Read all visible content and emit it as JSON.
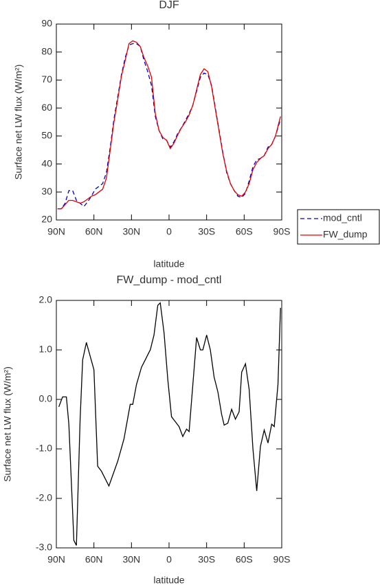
{
  "chart_data": [
    {
      "type": "line",
      "title": "DJF",
      "xlabel": "latitude",
      "ylabel": "Surface net LW flux (W/m²)",
      "x": [
        89,
        86,
        83,
        80,
        77,
        74,
        71,
        68,
        65,
        62,
        59,
        56,
        53,
        50,
        47,
        44,
        41,
        38,
        35,
        32,
        29,
        26,
        23,
        20,
        17,
        14,
        11,
        8,
        5,
        2,
        -1,
        -4,
        -7,
        -10,
        -13,
        -16,
        -19,
        -22,
        -25,
        -28,
        -31,
        -34,
        -37,
        -40,
        -43,
        -46,
        -49,
        -52,
        -55,
        -58,
        -61,
        -64,
        -67,
        -70,
        -73,
        -76,
        -79,
        -82,
        -85,
        -89
      ],
      "series": [
        {
          "name": "mod_cntl",
          "color": "#0000cc",
          "dashed": true,
          "values": [
            24,
            24,
            26,
            30.5,
            30.5,
            27,
            26,
            24.8,
            26.5,
            28.5,
            31,
            32,
            33,
            37,
            46,
            56,
            64,
            72,
            78,
            82.5,
            83,
            83,
            82,
            77,
            73,
            68,
            57,
            52,
            49,
            48.5,
            46,
            48,
            51,
            53,
            55.5,
            58,
            61,
            66,
            71,
            72.5,
            72,
            68,
            60,
            52,
            44,
            37,
            33,
            30.5,
            28.5,
            28,
            29.5,
            34,
            39,
            41.5,
            42,
            43,
            46,
            47,
            50,
            56
          ]
        },
        {
          "name": "FW_dump",
          "color": "#e00000",
          "dashed": false,
          "values": [
            24,
            24,
            25.5,
            27,
            27,
            26.5,
            26,
            26.5,
            27.5,
            28.5,
            29,
            30,
            31,
            35,
            45,
            55,
            63,
            71.5,
            77,
            83,
            84,
            83.5,
            82,
            78,
            75,
            71,
            58,
            52,
            49.5,
            48.5,
            45.5,
            47.5,
            50.5,
            53,
            55,
            57.5,
            61,
            66.5,
            72,
            74,
            73,
            67.5,
            59.5,
            51.5,
            43.5,
            37.5,
            33,
            30.5,
            29,
            28.5,
            30,
            33,
            38,
            40.5,
            42,
            43,
            45.5,
            47,
            50,
            57
          ]
        }
      ],
      "xlim": [
        90,
        -90
      ],
      "xticks": [
        {
          "value": 90,
          "label": "90N"
        },
        {
          "value": 60,
          "label": "60N"
        },
        {
          "value": 30,
          "label": "30N"
        },
        0,
        {
          "value": -30,
          "label": "30S"
        },
        {
          "value": -60,
          "label": "60S"
        },
        {
          "value": -90,
          "label": "90S"
        }
      ],
      "ylim": [
        20,
        90
      ],
      "yticks": [
        20,
        30,
        40,
        50,
        60,
        70,
        80,
        90
      ],
      "legend": "right"
    },
    {
      "type": "line",
      "title": "FW_dump - mod_cntl",
      "xlabel": "latitude",
      "ylabel": "Surface net LW flux (W/m²)",
      "x": [
        88,
        85,
        82,
        80,
        76,
        74,
        71,
        69,
        66,
        60,
        57,
        54,
        48,
        41,
        36,
        31,
        29,
        26,
        22,
        19,
        16,
        15,
        12,
        9,
        7,
        4,
        1,
        -2,
        -5,
        -8,
        -11,
        -14,
        -16,
        -22,
        -25,
        -27,
        -30,
        -33,
        -36,
        -39,
        -42,
        -44,
        -47,
        -50,
        -53,
        -56,
        -58,
        -61,
        -64,
        -67,
        -70,
        -73,
        -76,
        -79,
        -82,
        -84,
        -87,
        -89
      ],
      "values": [
        -0.15,
        0.05,
        0.05,
        -0.5,
        -2.85,
        -2.95,
        -0.4,
        0.8,
        1.15,
        0.6,
        -1.35,
        -1.45,
        -1.75,
        -1.25,
        -0.8,
        -0.1,
        -0.1,
        0.3,
        0.65,
        0.8,
        0.95,
        1.0,
        1.3,
        1.9,
        1.95,
        1.35,
        0.4,
        -0.35,
        -0.45,
        -0.55,
        -0.75,
        -0.6,
        -0.65,
        1.25,
        1.0,
        1.0,
        1.3,
        1.0,
        0.45,
        0.15,
        -0.3,
        -0.52,
        -0.48,
        -0.2,
        -0.4,
        -0.25,
        0.55,
        0.72,
        0.2,
        -1.0,
        -1.85,
        -0.95,
        -0.62,
        -0.88,
        -0.5,
        -0.55,
        0.3,
        1.85
      ],
      "color": "#000000",
      "xlim": [
        90,
        -90
      ],
      "xticks": [
        {
          "value": 90,
          "label": "90N"
        },
        {
          "value": 60,
          "label": "60N"
        },
        {
          "value": 30,
          "label": "30N"
        },
        0,
        {
          "value": -30,
          "label": "30S"
        },
        {
          "value": -60,
          "label": "60S"
        },
        {
          "value": -90,
          "label": "90S"
        }
      ],
      "ylim": [
        -3,
        2
      ],
      "yticks": [
        {
          "value": -3,
          "label": "-3.0"
        },
        {
          "value": -2,
          "label": "-2.0"
        },
        {
          "value": -1,
          "label": "-1.0"
        },
        {
          "value": 0,
          "label": "0.0"
        },
        {
          "value": 1,
          "label": "1.0"
        },
        {
          "value": 2,
          "label": "2.0"
        }
      ]
    }
  ]
}
